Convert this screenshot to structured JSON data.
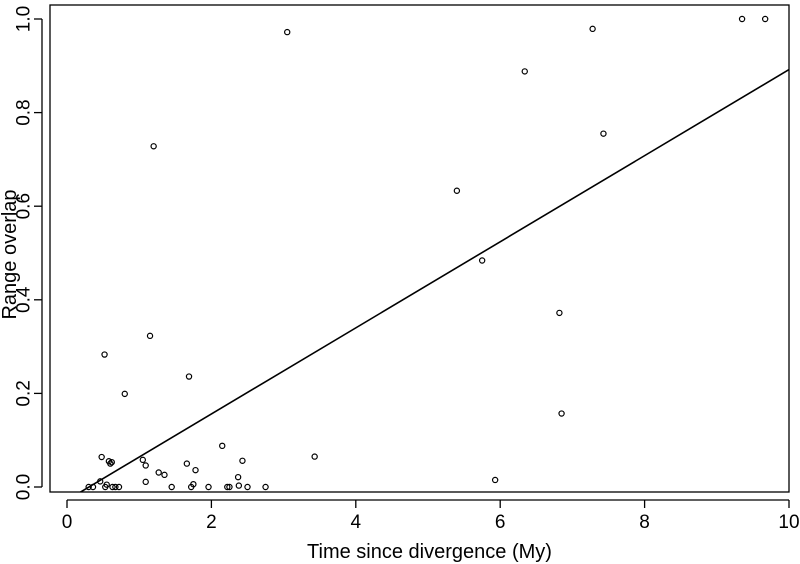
{
  "chart_data": {
    "type": "scatter",
    "xlabel": "Time since divergence (My)",
    "ylabel": "Range overlap",
    "xlim": [
      -0.2,
      10
    ],
    "ylim": [
      -0.03,
      1.03
    ],
    "x_ticks": [
      0,
      2,
      4,
      6,
      8,
      10
    ],
    "y_ticks": [
      0.0,
      0.2,
      0.4,
      0.6,
      0.8,
      1.0
    ],
    "x_tick_labels": [
      "0",
      "2",
      "4",
      "6",
      "8",
      "10"
    ],
    "y_tick_labels": [
      "0.0",
      "0.2",
      "0.4",
      "0.6",
      "0.8",
      "1.0"
    ],
    "grid": false,
    "legend": "none",
    "points": [
      {
        "x": 0.3,
        "y": 0.0
      },
      {
        "x": 0.36,
        "y": 0.0
      },
      {
        "x": 0.46,
        "y": 0.012
      },
      {
        "x": 0.48,
        "y": 0.064
      },
      {
        "x": 0.53,
        "y": 0.0
      },
      {
        "x": 0.55,
        "y": 0.005
      },
      {
        "x": 0.58,
        "y": 0.055
      },
      {
        "x": 0.6,
        "y": 0.05
      },
      {
        "x": 0.62,
        "y": 0.053
      },
      {
        "x": 0.63,
        "y": 0.0
      },
      {
        "x": 0.67,
        "y": 0.0
      },
      {
        "x": 0.72,
        "y": 0.0
      },
      {
        "x": 0.52,
        "y": 0.283
      },
      {
        "x": 0.8,
        "y": 0.199
      },
      {
        "x": 1.05,
        "y": 0.058
      },
      {
        "x": 1.09,
        "y": 0.046
      },
      {
        "x": 1.09,
        "y": 0.011
      },
      {
        "x": 1.15,
        "y": 0.323
      },
      {
        "x": 1.2,
        "y": 0.728
      },
      {
        "x": 1.27,
        "y": 0.031
      },
      {
        "x": 1.35,
        "y": 0.026
      },
      {
        "x": 1.45,
        "y": 0.0
      },
      {
        "x": 1.66,
        "y": 0.05
      },
      {
        "x": 1.69,
        "y": 0.236
      },
      {
        "x": 1.72,
        "y": 0.0
      },
      {
        "x": 1.75,
        "y": 0.006
      },
      {
        "x": 1.78,
        "y": 0.036
      },
      {
        "x": 1.96,
        "y": 0.0
      },
      {
        "x": 2.15,
        "y": 0.088
      },
      {
        "x": 2.22,
        "y": 0.0
      },
      {
        "x": 2.25,
        "y": 0.0
      },
      {
        "x": 2.37,
        "y": 0.021
      },
      {
        "x": 2.38,
        "y": 0.003
      },
      {
        "x": 2.43,
        "y": 0.056
      },
      {
        "x": 2.5,
        "y": 0.0
      },
      {
        "x": 2.75,
        "y": 0.0
      },
      {
        "x": 3.05,
        "y": 0.972
      },
      {
        "x": 3.43,
        "y": 0.065
      },
      {
        "x": 5.4,
        "y": 0.633
      },
      {
        "x": 5.75,
        "y": 0.484
      },
      {
        "x": 5.93,
        "y": 0.015
      },
      {
        "x": 6.34,
        "y": 0.888
      },
      {
        "x": 6.82,
        "y": 0.372
      },
      {
        "x": 6.85,
        "y": 0.157
      },
      {
        "x": 7.28,
        "y": 0.979
      },
      {
        "x": 7.43,
        "y": 0.755
      },
      {
        "x": 9.35,
        "y": 1.0
      },
      {
        "x": 9.67,
        "y": 1.0
      }
    ],
    "fit_line": {
      "intercept": -0.028,
      "slope": 0.092
    }
  }
}
